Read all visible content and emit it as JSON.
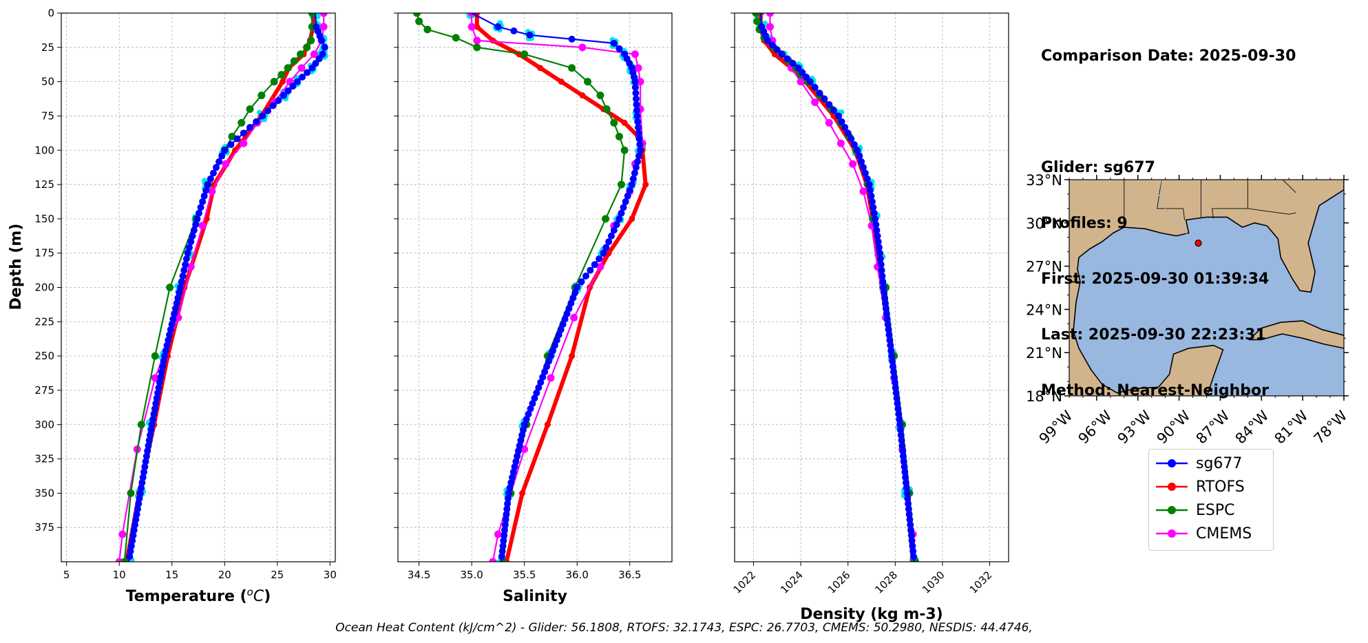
{
  "colors": {
    "sg677": "#0000ff",
    "RTOFS": "#ff0000",
    "ESPC": "#008000",
    "CMEMS": "#ff00ff",
    "glider_raw": "#00e5ee",
    "land": "#d2b48c",
    "ocean": "#99b8e0"
  },
  "info": {
    "line1": "Comparison Date: 2025-09-30",
    "line2": "Glider: sg677",
    "line3": "Profiles: 9",
    "line4": "First: 2025-09-30 01:39:34",
    "line5": "Last: 2025-09-30 22:23:31",
    "line6": "Method: Nearest-Neighbor"
  },
  "footer": "Ocean Heat Content (kJ/cm^2) - Glider: 56.1808,  RTOFS: 32.1743,  ESPC: 26.7703,  CMEMS: 50.2980,  NESDIS: 44.4746,",
  "legend": [
    {
      "name": "sg677",
      "color": "#0000ff"
    },
    {
      "name": "RTOFS",
      "color": "#ff0000"
    },
    {
      "name": "ESPC",
      "color": "#008000"
    },
    {
      "name": "CMEMS",
      "color": "#ff00ff"
    }
  ],
  "chart_data": [
    {
      "type": "line",
      "xlabel": "Temperature ($^oC$)",
      "ylabel": "Depth (m)",
      "xlim": [
        4.5,
        30.5
      ],
      "ylim": [
        400,
        0
      ],
      "xticks": [
        5,
        10,
        15,
        20,
        25,
        30
      ],
      "yticks": [
        0,
        25,
        50,
        75,
        100,
        125,
        150,
        175,
        200,
        225,
        250,
        275,
        300,
        325,
        350,
        375
      ],
      "grid": true,
      "series": [
        {
          "name": "sg677",
          "depth": [
            0,
            10,
            20,
            25,
            30,
            40,
            50,
            60,
            75,
            100,
            125,
            150,
            175,
            200,
            250,
            300,
            350,
            400
          ],
          "values": [
            28.6,
            28.7,
            29.2,
            29.5,
            29.3,
            28.3,
            26.9,
            25.6,
            23.6,
            20.0,
            18.4,
            17.4,
            16.5,
            15.8,
            14.3,
            13.1,
            12.0,
            10.9
          ]
        },
        {
          "name": "RTOFS",
          "depth": [
            0,
            10,
            20,
            30,
            40,
            50,
            75,
            100,
            125,
            150,
            200,
            250,
            300,
            350,
            400
          ],
          "values": [
            28.4,
            28.4,
            28.1,
            27.5,
            26.1,
            25.5,
            23.5,
            21.0,
            19.0,
            18.3,
            16.2,
            14.6,
            13.3,
            11.9,
            10.7
          ]
        },
        {
          "name": "ESPC",
          "depth": [
            0,
            10,
            20,
            25,
            30,
            35,
            40,
            45,
            50,
            60,
            70,
            80,
            90,
            100,
            125,
            150,
            200,
            250,
            300,
            350,
            400
          ],
          "values": [
            28.3,
            28.3,
            28.2,
            27.8,
            27.2,
            26.6,
            26.0,
            25.4,
            24.7,
            23.5,
            22.4,
            21.6,
            20.7,
            20.0,
            18.4,
            17.3,
            14.8,
            13.4,
            12.1,
            11.1,
            10.5
          ]
        },
        {
          "name": "CMEMS",
          "depth": [
            0,
            10,
            20,
            30,
            40,
            50,
            65,
            80,
            95,
            110,
            130,
            155,
            185,
            222,
            266,
            318,
            380,
            400
          ],
          "values": [
            29.4,
            29.4,
            29.2,
            28.5,
            27.3,
            26.2,
            24.7,
            23.1,
            21.8,
            20.1,
            18.8,
            17.9,
            16.8,
            15.6,
            13.4,
            11.7,
            10.3,
            10.0
          ]
        }
      ]
    },
    {
      "type": "line",
      "xlabel": "Salinity",
      "ylabel": "",
      "xlim": [
        34.3,
        36.9
      ],
      "ylim": [
        400,
        0
      ],
      "xticks": [
        34.5,
        35.0,
        35.5,
        36.0,
        36.5
      ],
      "yticks": [
        0,
        25,
        50,
        75,
        100,
        125,
        150,
        175,
        200,
        225,
        250,
        275,
        300,
        325,
        350,
        375
      ],
      "grid": true,
      "series": [
        {
          "name": "sg677",
          "depth": [
            0,
            10,
            16,
            22,
            30,
            40,
            50,
            75,
            100,
            125,
            150,
            175,
            200,
            250,
            300,
            350,
            400
          ],
          "values": [
            35.0,
            35.25,
            35.55,
            36.35,
            36.45,
            36.52,
            36.55,
            36.57,
            36.6,
            36.52,
            36.4,
            36.25,
            36.0,
            35.75,
            35.5,
            35.35,
            35.28
          ]
        },
        {
          "name": "RTOFS",
          "depth": [
            0,
            10,
            20,
            30,
            40,
            50,
            60,
            70,
            80,
            90,
            100,
            125,
            150,
            175,
            200,
            250,
            300,
            350,
            400
          ],
          "values": [
            35.05,
            35.05,
            35.2,
            35.45,
            35.65,
            35.85,
            36.05,
            36.25,
            36.45,
            36.58,
            36.62,
            36.65,
            36.52,
            36.3,
            36.12,
            35.95,
            35.72,
            35.48,
            35.33
          ]
        },
        {
          "name": "ESPC",
          "depth": [
            0,
            6,
            12,
            18,
            25,
            30,
            40,
            50,
            60,
            70,
            80,
            90,
            100,
            125,
            150,
            200,
            250,
            300,
            350,
            400
          ],
          "values": [
            34.48,
            34.5,
            34.58,
            34.85,
            35.05,
            35.5,
            35.95,
            36.1,
            36.22,
            36.28,
            36.35,
            36.4,
            36.45,
            36.42,
            36.27,
            35.98,
            35.72,
            35.52,
            35.37,
            35.3
          ]
        },
        {
          "name": "CMEMS",
          "depth": [
            0,
            10,
            20,
            25,
            30,
            40,
            50,
            70,
            95,
            110,
            130,
            155,
            185,
            222,
            266,
            318,
            380,
            400
          ],
          "values": [
            35.0,
            35.0,
            35.05,
            36.05,
            36.55,
            36.58,
            36.6,
            36.6,
            36.62,
            36.55,
            36.5,
            36.35,
            36.22,
            35.97,
            35.75,
            35.5,
            35.25,
            35.2
          ]
        }
      ]
    },
    {
      "type": "line",
      "xlabel": "Density (kg m-3)",
      "ylabel": "",
      "xlim": [
        1021.2,
        1032.8
      ],
      "ylim": [
        400,
        0
      ],
      "xticks": [
        1022,
        1024,
        1026,
        1028,
        1030,
        1032
      ],
      "yticks": [
        0,
        25,
        50,
        75,
        100,
        125,
        150,
        175,
        200,
        225,
        250,
        275,
        300,
        325,
        350,
        375
      ],
      "grid": true,
      "series": [
        {
          "name": "sg677",
          "depth": [
            0,
            10,
            20,
            30,
            40,
            50,
            75,
            100,
            125,
            150,
            175,
            200,
            250,
            300,
            350,
            400
          ],
          "values": [
            1022.3,
            1022.35,
            1022.6,
            1023.2,
            1023.9,
            1024.4,
            1025.6,
            1026.4,
            1026.9,
            1027.15,
            1027.35,
            1027.5,
            1027.85,
            1028.2,
            1028.5,
            1028.8
          ]
        },
        {
          "name": "RTOFS",
          "depth": [
            0,
            10,
            20,
            30,
            40,
            50,
            75,
            100,
            125,
            150,
            200,
            250,
            300,
            350,
            400
          ],
          "values": [
            1022.3,
            1022.3,
            1022.45,
            1022.9,
            1023.6,
            1024.2,
            1025.4,
            1026.3,
            1026.8,
            1027.05,
            1027.45,
            1027.85,
            1028.2,
            1028.5,
            1028.75
          ]
        },
        {
          "name": "ESPC",
          "depth": [
            0,
            6,
            12,
            18,
            25,
            30,
            35,
            40,
            45,
            50,
            60,
            70,
            80,
            90,
            100,
            125,
            150,
            200,
            250,
            300,
            350,
            400
          ],
          "values": [
            1022.1,
            1022.15,
            1022.25,
            1022.45,
            1022.85,
            1023.2,
            1023.5,
            1023.8,
            1024.0,
            1024.3,
            1024.8,
            1025.3,
            1025.7,
            1026.05,
            1026.35,
            1026.85,
            1027.05,
            1027.6,
            1027.95,
            1028.3,
            1028.6,
            1028.85
          ]
        },
        {
          "name": "CMEMS",
          "depth": [
            0,
            10,
            20,
            30,
            40,
            50,
            65,
            80,
            95,
            110,
            130,
            155,
            185,
            222,
            266,
            318,
            380,
            400
          ],
          "values": [
            1022.7,
            1022.7,
            1022.8,
            1023.2,
            1023.6,
            1024.0,
            1024.6,
            1025.2,
            1025.7,
            1026.2,
            1026.65,
            1027.0,
            1027.25,
            1027.6,
            1027.95,
            1028.3,
            1028.75,
            1028.85
          ]
        }
      ]
    },
    {
      "type": "map",
      "title": "",
      "xlim": [
        -98,
        -78
      ],
      "ylim": [
        18,
        33
      ],
      "xticks": [
        -99,
        -96,
        -93,
        -90,
        -87,
        -84,
        -81,
        -78
      ],
      "xticklabels": [
        "99°W",
        "96°W",
        "93°W",
        "90°W",
        "87°W",
        "84°W",
        "81°W",
        "78°W"
      ],
      "yticks": [
        18,
        21,
        24,
        27,
        30,
        33
      ],
      "yticklabels": [
        "18°N",
        "21°N",
        "24°N",
        "27°N",
        "30°N",
        "33°N"
      ],
      "points": [
        {
          "name": "sg677",
          "lon": -88.6,
          "lat": 28.6,
          "color": "#ff0000"
        }
      ]
    }
  ]
}
